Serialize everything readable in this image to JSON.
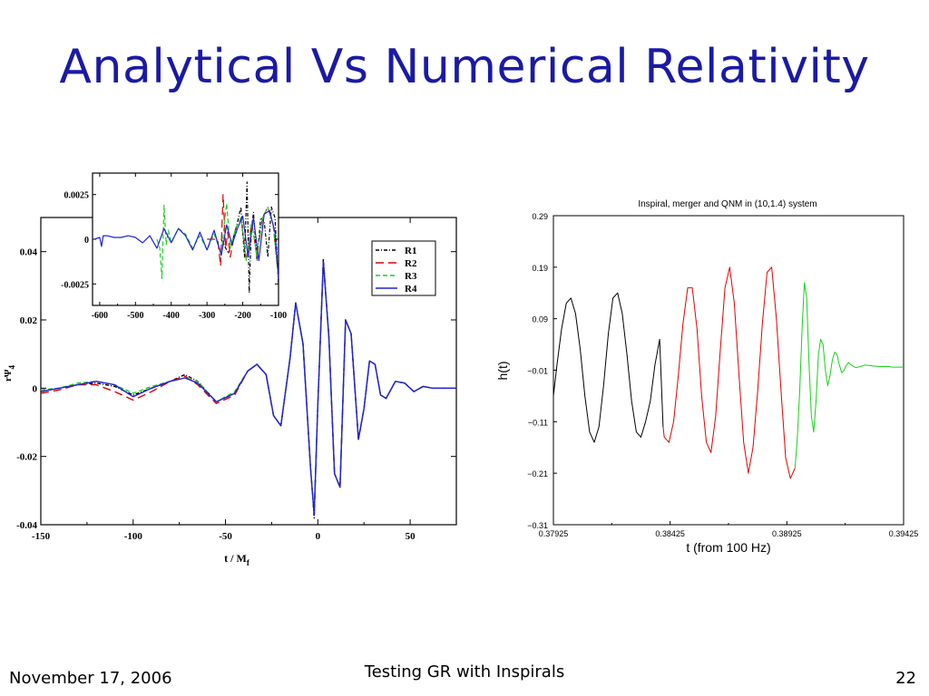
{
  "slide": {
    "title": "Analytical Vs Numerical Relativity",
    "footer_date": "November 17, 2006",
    "footer_center": "Testing GR with Inspirals",
    "page_number": "22"
  },
  "chart_data": [
    {
      "type": "line",
      "xlabel": "t / M",
      "xlabel_sub": "f",
      "ylabel": "rΨ",
      "ylabel_sub": "4",
      "xlim": [
        -150,
        75
      ],
      "ylim": [
        -0.04,
        0.05
      ],
      "xticks": [
        -150,
        -100,
        -50,
        0,
        50
      ],
      "xtick_labels": [
        "-150",
        "-100",
        "-50",
        "0",
        "50"
      ],
      "yticks": [
        -0.04,
        -0.02,
        0,
        0.02,
        0.04
      ],
      "ytick_labels": [
        "-0.04",
        "-0.02",
        "0",
        "0.02",
        "0.04"
      ],
      "legend_position": "top-right",
      "series": [
        {
          "name": "R1",
          "color": "#000000",
          "dash": "4,2,1,2",
          "x": [
            -150,
            -140,
            -130,
            -120,
            -110,
            -100,
            -90,
            -80,
            -72,
            -65,
            -55,
            -45,
            -38,
            -33,
            -28,
            -24,
            -20,
            -15,
            -12,
            -8,
            -4,
            -2,
            0,
            3,
            6,
            9,
            12,
            15,
            18,
            22,
            25,
            28,
            31,
            34,
            37,
            42,
            47,
            52,
            57,
            62,
            68,
            75
          ],
          "y": [
            -0.001,
            0,
            0.001,
            0.0015,
            0.0005,
            -0.002,
            0,
            0.002,
            0.004,
            0.002,
            -0.004,
            -0.0015,
            0.005,
            0.007,
            0.004,
            -0.008,
            -0.011,
            0.009,
            0.025,
            0.013,
            -0.023,
            -0.038,
            -0.005,
            0.038,
            0.015,
            -0.025,
            -0.029,
            0.02,
            0.016,
            -0.015,
            -0.006,
            0.008,
            0.007,
            -0.002,
            -0.003,
            0.002,
            0.0015,
            -0.001,
            0.0005,
            0,
            0,
            0
          ]
        },
        {
          "name": "R2",
          "color": "#e00000",
          "dash": "9,5",
          "x": [
            -150,
            -140,
            -130,
            -120,
            -110,
            -100,
            -90,
            -80,
            -72,
            -65,
            -55,
            -45,
            -38,
            -33,
            -28,
            -24,
            -20,
            -15,
            -12,
            -8,
            -4,
            -2,
            0,
            3,
            6,
            9,
            12,
            15,
            18,
            22,
            25,
            28,
            31,
            34,
            37,
            42,
            47,
            52,
            57,
            62,
            68,
            75
          ],
          "y": [
            -0.0015,
            -0.0005,
            0.001,
            0.001,
            -0.001,
            -0.0035,
            -0.001,
            0.002,
            0.0035,
            0.001,
            -0.0045,
            -0.002,
            0.005,
            0.007,
            0.004,
            -0.008,
            -0.011,
            0.009,
            0.025,
            0.013,
            -0.023,
            -0.037,
            -0.005,
            0.037,
            0.015,
            -0.025,
            -0.029,
            0.02,
            0.016,
            -0.015,
            -0.006,
            0.008,
            0.007,
            -0.002,
            -0.003,
            0.002,
            0.0015,
            -0.001,
            0.0005,
            0,
            0,
            0
          ]
        },
        {
          "name": "R3",
          "color": "#18d018",
          "dash": "5,3",
          "x": [
            -150,
            -140,
            -130,
            -120,
            -110,
            -100,
            -90,
            -80,
            -72,
            -65,
            -55,
            -45,
            -38,
            -33,
            -28,
            -24,
            -20,
            -15,
            -12,
            -8,
            -4,
            -2,
            0,
            3,
            6,
            9,
            12,
            15,
            18,
            22,
            25,
            28,
            31,
            34,
            37,
            42,
            47,
            52,
            57,
            62,
            68,
            75
          ],
          "y": [
            -0.0005,
            0,
            0.0015,
            0.002,
            0.001,
            -0.0015,
            0.0005,
            0.002,
            0.003,
            0.002,
            -0.004,
            -0.001,
            0.005,
            0.007,
            0.004,
            -0.008,
            -0.011,
            0.009,
            0.025,
            0.013,
            -0.023,
            -0.037,
            -0.005,
            0.037,
            0.015,
            -0.025,
            -0.029,
            0.02,
            0.016,
            -0.015,
            -0.006,
            0.008,
            0.007,
            -0.002,
            -0.003,
            0.002,
            0.0015,
            -0.001,
            0.0005,
            0,
            0,
            0
          ]
        },
        {
          "name": "R4",
          "color": "#2020e0",
          "dash": "",
          "x": [
            -150,
            -140,
            -130,
            -120,
            -110,
            -100,
            -90,
            -80,
            -72,
            -65,
            -55,
            -45,
            -38,
            -33,
            -28,
            -24,
            -20,
            -15,
            -12,
            -8,
            -4,
            -2,
            0,
            3,
            6,
            9,
            12,
            15,
            18,
            22,
            25,
            28,
            31,
            34,
            37,
            42,
            47,
            52,
            57,
            62,
            68,
            75
          ],
          "y": [
            -0.001,
            0,
            0.001,
            0.002,
            0.001,
            -0.0025,
            0,
            0.002,
            0.003,
            0.0015,
            -0.004,
            -0.0015,
            0.005,
            0.007,
            0.004,
            -0.008,
            -0.011,
            0.009,
            0.025,
            0.013,
            -0.023,
            -0.037,
            -0.005,
            0.037,
            0.015,
            -0.025,
            -0.029,
            0.02,
            0.016,
            -0.015,
            -0.006,
            0.008,
            0.007,
            -0.002,
            -0.003,
            0.002,
            0.0015,
            -0.001,
            0.0005,
            0,
            0,
            0
          ]
        }
      ]
    },
    {
      "type": "line",
      "inset": true,
      "xlim": [
        -620,
        -100
      ],
      "ylim": [
        -0.0037,
        0.0037
      ],
      "xticks": [
        -600,
        -500,
        -400,
        -300,
        -200,
        -100
      ],
      "xtick_labels": [
        "-600",
        "-500",
        "-400",
        "-300",
        "-200",
        "-100"
      ],
      "yticks": [
        -0.0025,
        0,
        0.0025
      ],
      "ytick_labels": [
        "-0.0025",
        "0",
        "0.0025"
      ],
      "series": [
        {
          "name": "R1",
          "color": "#000000",
          "dash": "4,2,1,2",
          "x": [
            -260,
            -240,
            -220,
            -205,
            -195,
            -188,
            -182,
            -176,
            -170,
            -160,
            -150,
            -140,
            -130,
            -120,
            -110,
            -100
          ],
          "y": [
            0,
            -0.0008,
            0.0005,
            0.0018,
            -0.001,
            0.0032,
            -0.003,
            0.0005,
            0.0015,
            -0.0012,
            0.0012,
            0.001,
            -0.001,
            0.0018,
            0.0012,
            -0.0025
          ]
        },
        {
          "name": "R2",
          "color": "#e00000",
          "dash": "9,5",
          "x": [
            -300,
            -270,
            -262,
            -255,
            -248,
            -242,
            -235,
            -220,
            -205,
            -190,
            -175,
            -160,
            -145,
            -130,
            -115,
            -100
          ],
          "y": [
            0,
            0,
            -0.0015,
            0.0025,
            -0.0005,
            0.0004,
            -0.001,
            0.0006,
            0.0012,
            -0.0012,
            0.001,
            -0.001,
            0.0012,
            0.0018,
            0.0008,
            -0.0022
          ]
        },
        {
          "name": "R3",
          "color": "#18d018",
          "dash": "5,3",
          "x": [
            -440,
            -432,
            -426,
            -420,
            -414,
            -408,
            -400,
            -380,
            -360,
            -340,
            -320,
            -300,
            -280,
            -260,
            -245,
            -235,
            -220,
            -205,
            -190,
            -175,
            -160,
            -145,
            -130,
            -115,
            -100
          ],
          "y": [
            0,
            -0.0005,
            -0.0022,
            0.0019,
            -0.0003,
            0.0005,
            -0.0002,
            0.0006,
            0.0003,
            -0.0005,
            0.0002,
            -0.0006,
            0.0003,
            -0.0008,
            0.002,
            -0.0005,
            0.0006,
            0.0012,
            -0.0012,
            0.001,
            -0.001,
            0.0012,
            0.0018,
            0.0008,
            -0.0022
          ]
        },
        {
          "name": "R4",
          "color": "#2020e0",
          "dash": "",
          "x": [
            -615,
            -600,
            -595,
            -590,
            -580,
            -560,
            -540,
            -520,
            -500,
            -480,
            -460,
            -440,
            -420,
            -400,
            -380,
            -360,
            -340,
            -320,
            -300,
            -280,
            -260,
            -245,
            -230,
            -215,
            -200,
            -185,
            -170,
            -155,
            -140,
            -125,
            -110,
            -100
          ],
          "y": [
            0,
            0.0001,
            -0.0004,
            0.0002,
            0.0002,
            0.0001,
            0.0001,
            0.0002,
            0.0001,
            -0.0002,
            0.0002,
            -0.0005,
            0.0006,
            -0.0002,
            0.0006,
            0.0002,
            -0.0006,
            0.0004,
            -0.0006,
            0.0005,
            -0.0009,
            0.0008,
            -0.0003,
            0.0006,
            0.0013,
            -0.001,
            0.0012,
            -0.0012,
            0.0014,
            0.0016,
            0.0004,
            -0.0022
          ]
        }
      ]
    },
    {
      "type": "line",
      "title": "Inspiral, merger and QNM in (10,1.4)  system",
      "xlabel": "t (from 100 Hz)",
      "ylabel": "h(t)",
      "xlim": [
        0.37925,
        0.39425
      ],
      "ylim": [
        -0.31,
        0.29
      ],
      "xticks": [
        0.37925,
        0.38425,
        0.38925,
        0.39425
      ],
      "xtick_labels": [
        "0.37925",
        "0.38425",
        "0.38925",
        "0.39425"
      ],
      "yticks": [
        0.29,
        0.19,
        0.09,
        -0.01,
        -0.11,
        -0.21,
        -0.31
      ],
      "ytick_labels": [
        "0.29",
        "0.19",
        "0.09",
        "−0.01",
        "−0.11",
        "−0.21",
        "−0.31"
      ],
      "series": [
        {
          "color": "#000000",
          "x": [
            0.37925,
            0.3794,
            0.3796,
            0.3798,
            0.38,
            0.3802,
            0.3804,
            0.3806,
            0.3808,
            0.381,
            0.3812,
            0.3814,
            0.3816,
            0.3818,
            0.382,
            0.3822,
            0.3824,
            0.3826,
            0.3828,
            0.383,
            0.3832,
            0.3834,
            0.3836,
            0.3838,
            0.38395
          ],
          "y": [
            -0.06,
            -0.0,
            0.07,
            0.12,
            0.13,
            0.1,
            0.03,
            -0.06,
            -0.13,
            -0.15,
            -0.12,
            -0.04,
            0.06,
            0.13,
            0.14,
            0.1,
            0.02,
            -0.07,
            -0.13,
            -0.14,
            -0.11,
            -0.07,
            0.0,
            0.05,
            -0.12
          ]
        },
        {
          "color": "#e00000",
          "x": [
            0.38395,
            0.384,
            0.3842,
            0.3844,
            0.3846,
            0.3848,
            0.385,
            0.3852,
            0.3854,
            0.3856,
            0.3858,
            0.386,
            0.3862,
            0.3864,
            0.3866,
            0.3868,
            0.387,
            0.3872,
            0.3874,
            0.3876,
            0.3878,
            0.388,
            0.3882,
            0.3884,
            0.3886,
            0.3888,
            0.389,
            0.3892,
            0.3894,
            0.3896
          ],
          "y": [
            -0.12,
            -0.14,
            -0.15,
            -0.11,
            -0.02,
            0.08,
            0.15,
            0.15,
            0.07,
            -0.06,
            -0.15,
            -0.17,
            -0.1,
            0.03,
            0.15,
            0.19,
            0.12,
            -0.02,
            -0.15,
            -0.21,
            -0.16,
            -0.05,
            0.08,
            0.18,
            0.19,
            0.09,
            -0.05,
            -0.18,
            -0.22,
            -0.2
          ]
        },
        {
          "color": "#18d018",
          "x": [
            0.3896,
            0.3897,
            0.3898,
            0.3899,
            0.39,
            0.3901,
            0.3902,
            0.3903,
            0.3904,
            0.3905,
            0.3906,
            0.3907,
            0.3908,
            0.3909,
            0.391,
            0.3911,
            0.3912,
            0.3913,
            0.3914,
            0.3915,
            0.3916,
            0.3917,
            0.3918,
            0.3919,
            0.392,
            0.3922,
            0.3924,
            0.3926,
            0.3928,
            0.393,
            0.3932,
            0.3934,
            0.3936,
            0.3938,
            0.394,
            0.39425
          ],
          "y": [
            -0.2,
            -0.14,
            -0.05,
            0.07,
            0.16,
            0.13,
            0.0,
            -0.1,
            -0.13,
            -0.07,
            0.02,
            0.05,
            0.04,
            -0.01,
            -0.04,
            -0.02,
            0.01,
            0.025,
            0.02,
            0.0,
            -0.015,
            -0.01,
            0.0,
            0.005,
            0.0,
            -0.005,
            -0.003,
            0.0,
            -0.001,
            -0.002,
            -0.003,
            -0.003,
            -0.003,
            -0.004,
            -0.004,
            -0.004
          ]
        }
      ]
    }
  ]
}
